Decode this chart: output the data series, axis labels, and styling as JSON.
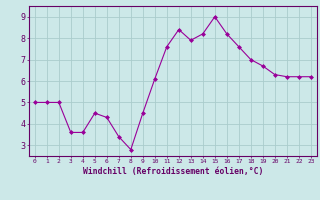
{
  "x": [
    0,
    1,
    2,
    3,
    4,
    5,
    6,
    7,
    8,
    9,
    10,
    11,
    12,
    13,
    14,
    15,
    16,
    17,
    18,
    19,
    20,
    21,
    22,
    23
  ],
  "y": [
    5.0,
    5.0,
    5.0,
    3.6,
    3.6,
    4.5,
    4.3,
    3.4,
    2.8,
    4.5,
    6.1,
    7.6,
    8.4,
    7.9,
    8.2,
    9.0,
    8.2,
    7.6,
    7.0,
    6.7,
    6.3,
    6.2,
    6.2,
    6.2
  ],
  "line_color": "#990099",
  "marker": "D",
  "marker_size": 2,
  "bg_color": "#cce8e8",
  "grid_color": "#aacccc",
  "xlabel": "Windchill (Refroidissement éolien,°C)",
  "xlabel_color": "#660066",
  "tick_color": "#660066",
  "spine_color": "#660066",
  "ylim": [
    2.5,
    9.5
  ],
  "xlim": [
    -0.5,
    23.5
  ],
  "yticks": [
    3,
    4,
    5,
    6,
    7,
    8,
    9
  ],
  "xticks": [
    0,
    1,
    2,
    3,
    4,
    5,
    6,
    7,
    8,
    9,
    10,
    11,
    12,
    13,
    14,
    15,
    16,
    17,
    18,
    19,
    20,
    21,
    22,
    23
  ]
}
